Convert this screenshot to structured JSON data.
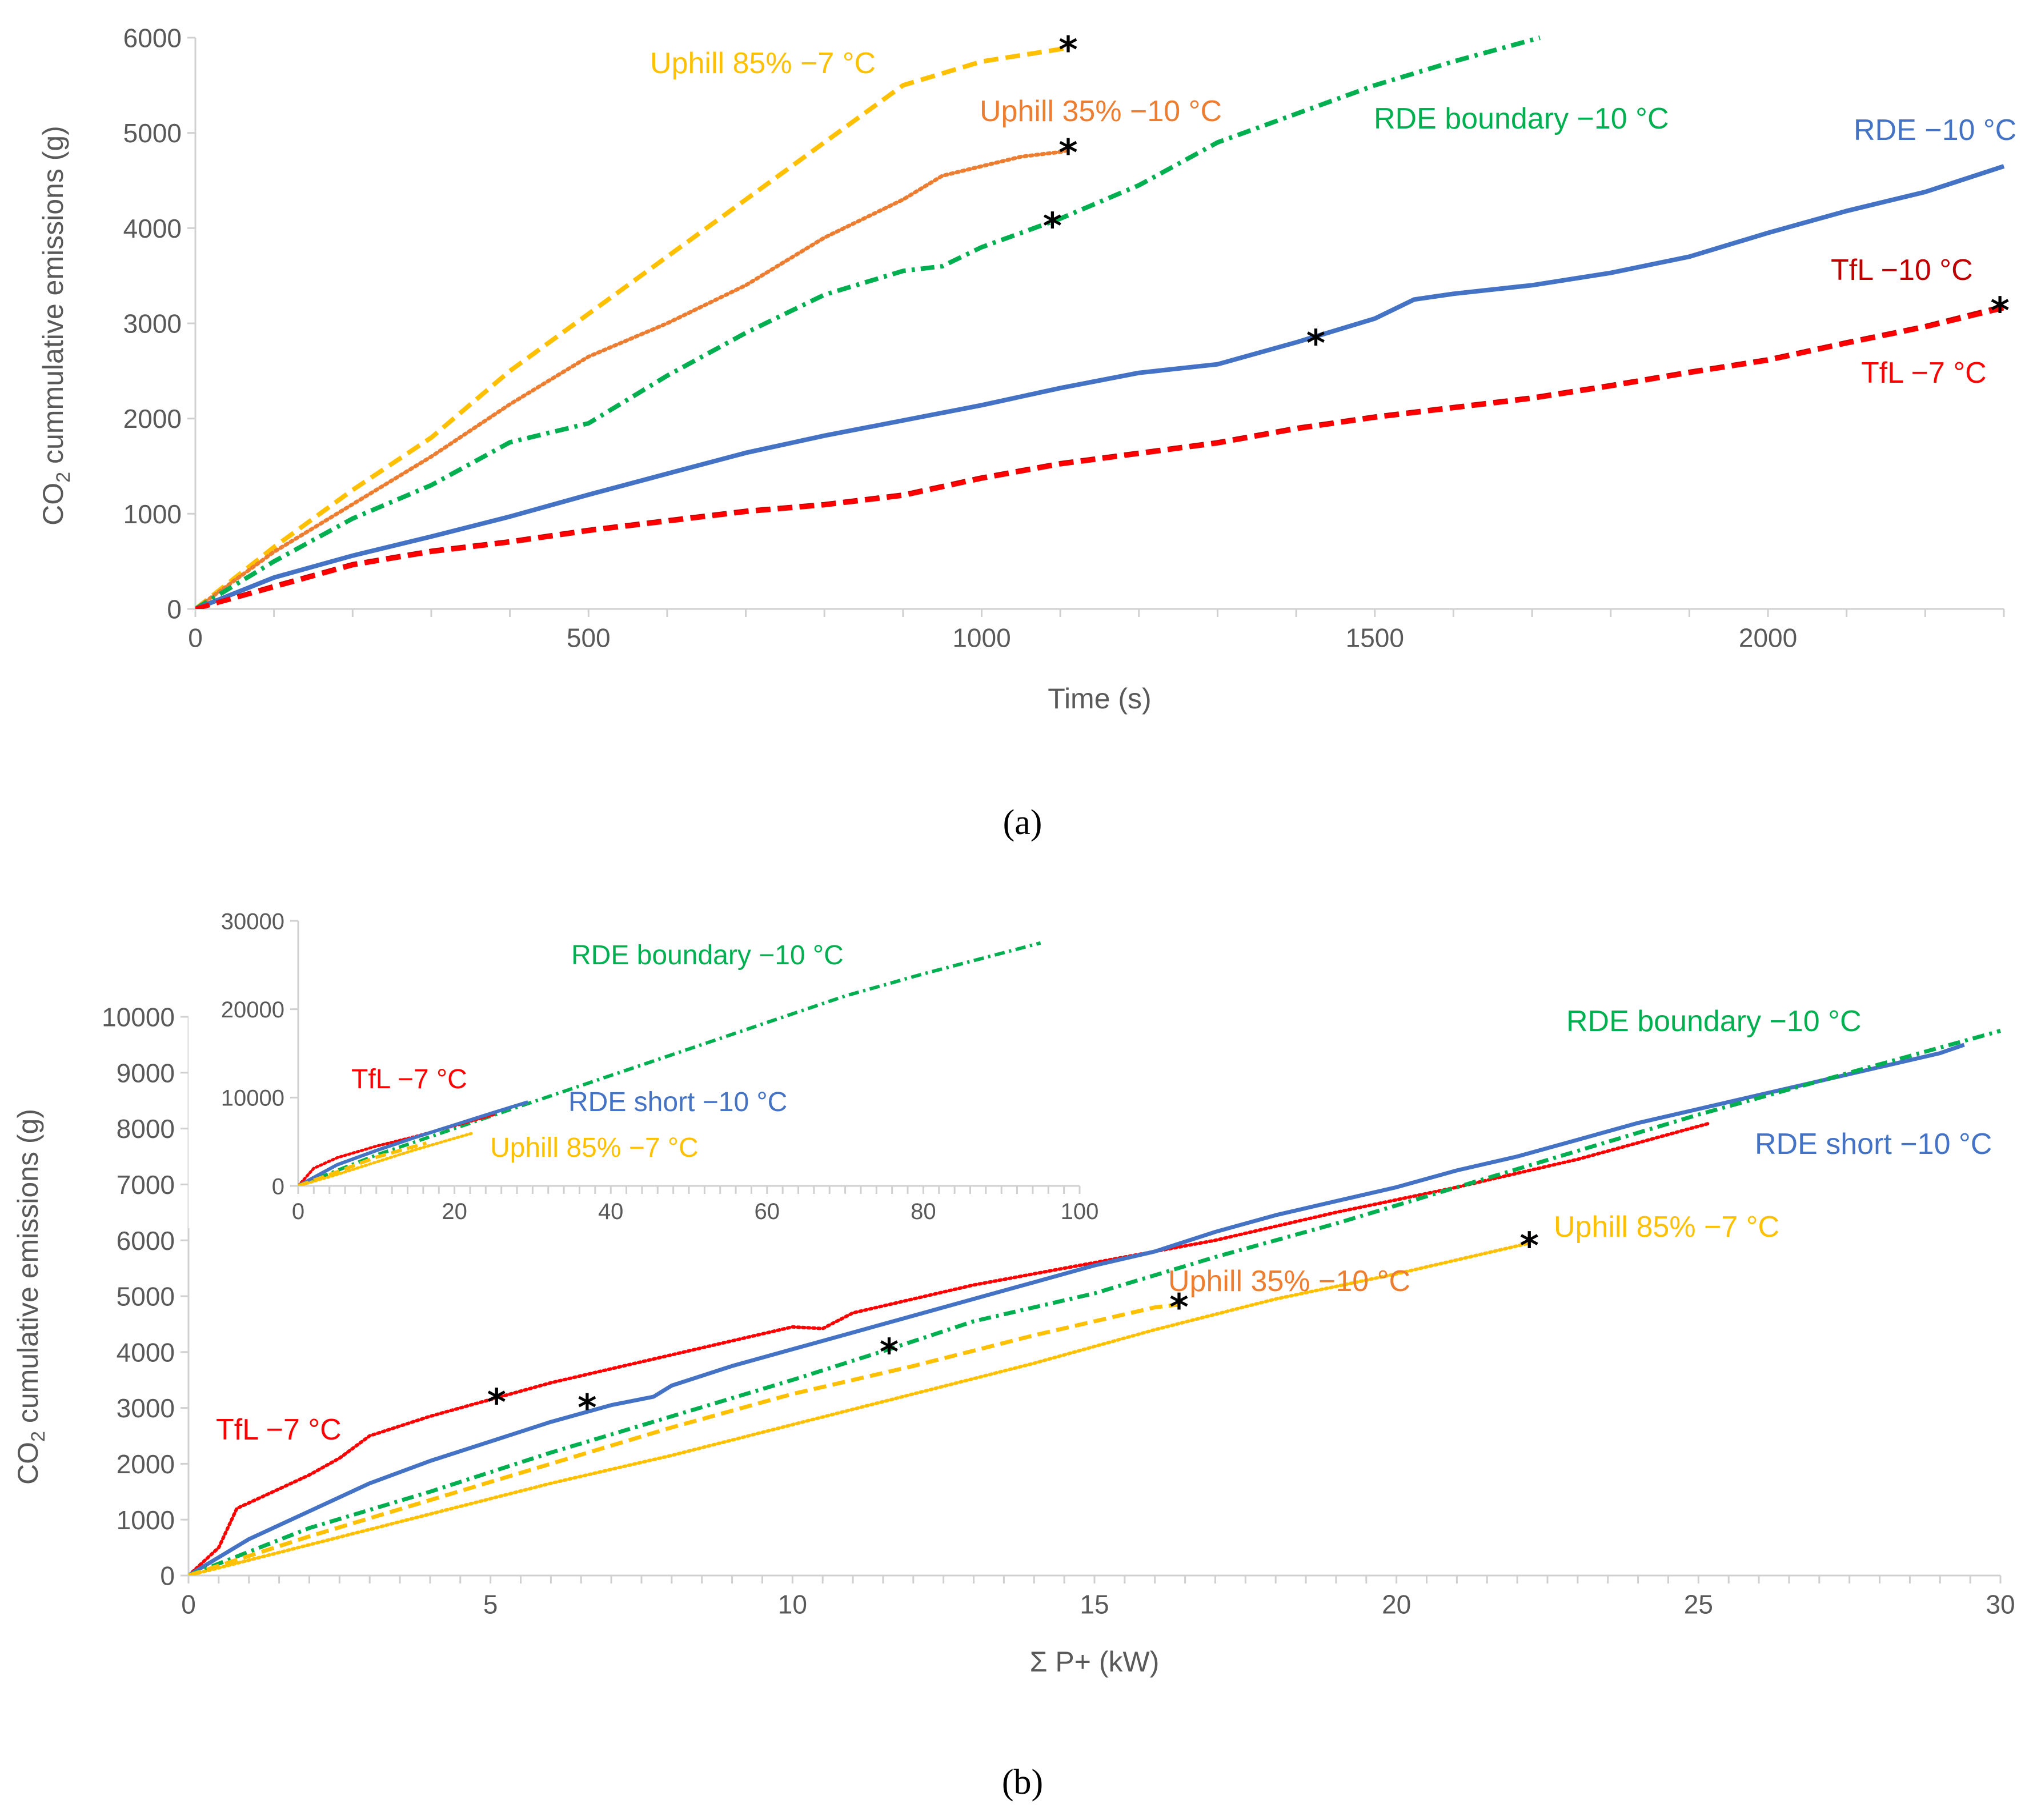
{
  "chart_data": [
    {
      "panel": "(a)",
      "panel_caption": "(a)",
      "type": "line",
      "title": "",
      "xlabel": "Time (s)",
      "ylabel": "CO2 cummulative emissions (g)",
      "ylabel_main": "CO",
      "ylabel_sub": "2",
      "ylabel_rest": " cummulative emissions (g)",
      "xlim": [
        0,
        2300
      ],
      "ylim": [
        0,
        6000
      ],
      "xticks": [
        0,
        500,
        1000,
        1500,
        2000
      ],
      "yticks": [
        0,
        1000,
        2000,
        3000,
        4000,
        5000,
        6000
      ],
      "series": [
        {
          "name": "Uphill 85% −7 °C",
          "color": "#FFC000",
          "style": "dash",
          "x": [
            0,
            100,
            200,
            300,
            400,
            500,
            600,
            700,
            800,
            900,
            1000,
            1100,
            1110
          ],
          "y": [
            0,
            650,
            1250,
            1800,
            2500,
            3100,
            3700,
            4300,
            4900,
            5500,
            5750,
            5880,
            5900
          ],
          "marker_at": [
            1110,
            5900
          ]
        },
        {
          "name": "Uphill 35% −10 °C",
          "color": "#ED7D31",
          "style": "dot",
          "x": [
            0,
            100,
            200,
            300,
            400,
            500,
            600,
            700,
            800,
            900,
            950,
            1000,
            1050,
            1100,
            1110
          ],
          "y": [
            0,
            600,
            1100,
            1600,
            2150,
            2650,
            3000,
            3400,
            3900,
            4300,
            4550,
            4650,
            4750,
            4800,
            4820
          ],
          "marker_at": [
            1110,
            4820
          ]
        },
        {
          "name": "RDE boundary −10 °C",
          "color": "#00B050",
          "style": "dashdot",
          "x": [
            0,
            100,
            200,
            300,
            400,
            500,
            600,
            700,
            800,
            900,
            950,
            1000,
            1100,
            1200,
            1300,
            1400,
            1500,
            1600,
            1710
          ],
          "y": [
            0,
            500,
            950,
            1300,
            1750,
            1950,
            2450,
            2900,
            3300,
            3550,
            3600,
            3800,
            4100,
            4450,
            4900,
            5200,
            5500,
            5750,
            6000
          ],
          "marker_at": [
            1090,
            4050
          ]
        },
        {
          "name": "RDE −10 °C",
          "color": "#4472C4",
          "style": "solid",
          "x": [
            0,
            100,
            200,
            300,
            400,
            500,
            600,
            700,
            800,
            900,
            1000,
            1100,
            1200,
            1300,
            1400,
            1500,
            1550,
            1600,
            1700,
            1800,
            1900,
            2000,
            2100,
            2200,
            2300
          ],
          "y": [
            0,
            330,
            560,
            760,
            970,
            1200,
            1420,
            1640,
            1820,
            1980,
            2140,
            2320,
            2480,
            2570,
            2800,
            3050,
            3250,
            3310,
            3400,
            3530,
            3700,
            3950,
            4180,
            4380,
            4650
          ],
          "marker_at": [
            1425,
            2820
          ]
        },
        {
          "name": "TfL −10 °C",
          "color": "#C00000",
          "style": "dash",
          "x": [
            0,
            100,
            200,
            300,
            400,
            500,
            600,
            700,
            800,
            900,
            1000,
            1100,
            1200,
            1300,
            1400,
            1500,
            1600,
            1700,
            1800,
            1900,
            2000,
            2100,
            2200,
            2300
          ],
          "y": [
            0,
            240,
            470,
            610,
            710,
            830,
            930,
            1030,
            1100,
            1200,
            1380,
            1530,
            1640,
            1750,
            1900,
            2020,
            2120,
            2220,
            2350,
            2490,
            2620,
            2800,
            2970,
            3180
          ],
          "marker_at": [
            2295,
            3160
          ]
        },
        {
          "name": "TfL −7 °C",
          "color": "#FF0000",
          "style": "dash",
          "x": [
            0,
            100,
            200,
            300,
            400,
            500,
            600,
            700,
            800,
            900,
            1000,
            1100,
            1200,
            1300,
            1400,
            1500,
            1600,
            1700,
            1800,
            1900,
            2000,
            2100,
            2200,
            2300
          ],
          "y": [
            0,
            230,
            460,
            600,
            700,
            820,
            920,
            1020,
            1090,
            1190,
            1370,
            1520,
            1630,
            1740,
            1890,
            2010,
            2110,
            2210,
            2340,
            2480,
            2610,
            2790,
            2960,
            3160
          ]
        }
      ],
      "labels": [
        {
          "text": "Uphill 85% −7 °C",
          "color": "#FFC000"
        },
        {
          "text": "Uphill 35% −10 °C",
          "color": "#ED7D31"
        },
        {
          "text": "RDE boundary −10 °C",
          "color": "#00B050"
        },
        {
          "text": "RDE −10 °C",
          "color": "#4472C4"
        },
        {
          "text": "TfL −10 °C",
          "color": "#C00000"
        },
        {
          "text": "TfL −7 °C",
          "color": "#FF0000"
        }
      ],
      "marker_symbol": "*"
    },
    {
      "panel": "(b)",
      "panel_caption": "(b)",
      "type": "line",
      "title": "",
      "xlabel": "Σ P+ (kW)",
      "ylabel": "CO2 cumulative emissions (g)",
      "ylabel_main": "CO",
      "ylabel_sub": "2",
      "ylabel_rest": " cumulative emissions (g)",
      "xlim": [
        0,
        30
      ],
      "ylim": [
        0,
        10000
      ],
      "xticks": [
        0,
        5,
        10,
        15,
        20,
        25,
        30
      ],
      "yticks": [
        0,
        1000,
        2000,
        3000,
        4000,
        5000,
        6000,
        7000,
        8000,
        9000,
        10000
      ],
      "series": [
        {
          "name": "TfL −7 °C",
          "color": "#FF0000",
          "style": "dot",
          "x": [
            0,
            0.5,
            0.8,
            1.2,
            2,
            2.5,
            3,
            4,
            5,
            6,
            7,
            8,
            9,
            10,
            10.5,
            11,
            12,
            13,
            15,
            17,
            19,
            21,
            23,
            25.2
          ],
          "y": [
            0,
            500,
            1200,
            1400,
            1800,
            2100,
            2500,
            2850,
            3150,
            3450,
            3700,
            3950,
            4200,
            4450,
            4420,
            4700,
            4950,
            5200,
            5600,
            6000,
            6500,
            6950,
            7450,
            8100
          ],
          "marker_at": [
            5.1,
            3150
          ]
        },
        {
          "name": "RDE short −10 °C",
          "color": "#4472C4",
          "style": "solid",
          "x": [
            0,
            1,
            2,
            3,
            4,
            5,
            6,
            7,
            7.7,
            8,
            9,
            10,
            11,
            12,
            13,
            14,
            15,
            16,
            17,
            18,
            19,
            20,
            21,
            22,
            23,
            24,
            25,
            26,
            27,
            28,
            29,
            29.4
          ],
          "y": [
            0,
            650,
            1150,
            1650,
            2050,
            2400,
            2750,
            3050,
            3200,
            3400,
            3750,
            4050,
            4350,
            4650,
            4950,
            5250,
            5550,
            5800,
            6150,
            6450,
            6700,
            6950,
            7250,
            7500,
            7800,
            8100,
            8350,
            8600,
            8850,
            9100,
            9350,
            9500
          ],
          "marker_at": [
            6.6,
            3050
          ]
        },
        {
          "name": "RDE boundary −10 °C",
          "color": "#00B050",
          "style": "dashdot",
          "x": [
            0,
            2,
            4,
            6,
            8,
            10,
            11.6,
            13,
            15,
            17,
            19,
            21,
            23,
            25,
            27,
            29,
            30
          ],
          "y": [
            0,
            850,
            1500,
            2200,
            2850,
            3500,
            4050,
            4550,
            5050,
            5700,
            6300,
            6950,
            7600,
            8250,
            8850,
            9450,
            9750
          ],
          "marker_at": [
            11.6,
            4050
          ]
        },
        {
          "name": "Uphill 35% −10 °C",
          "color": "#FFC000",
          "style": "dash",
          "x": [
            0,
            2,
            4,
            6,
            8,
            10,
            12,
            14,
            16,
            16.4
          ],
          "y": [
            0,
            700,
            1350,
            2000,
            2650,
            3250,
            3750,
            4300,
            4800,
            4850
          ],
          "marker_at": [
            16.4,
            4850
          ]
        },
        {
          "name": "Uphill 85% −7 °C",
          "color": "#FFC000",
          "style": "dot",
          "x": [
            0,
            2,
            4,
            6,
            8,
            10,
            12,
            14,
            16,
            18,
            20,
            22.2
          ],
          "y": [
            0,
            550,
            1100,
            1650,
            2150,
            2700,
            3250,
            3800,
            4400,
            4950,
            5400,
            5950
          ],
          "marker_at": [
            22.2,
            5950
          ]
        }
      ],
      "labels": [
        {
          "text": "RDE boundary −10 °C",
          "color": "#00B050"
        },
        {
          "text": "RDE short −10 °C",
          "color": "#4472C4"
        },
        {
          "text": "Uphill 85% −7 °C",
          "color": "#FFC000"
        },
        {
          "text": "Uphill 35% −10 °C",
          "color": "#ED7D31"
        },
        {
          "text": "TfL −7 °C",
          "color": "#FF0000"
        }
      ],
      "marker_symbol": "*",
      "inset": {
        "type": "line",
        "xlim": [
          0,
          100
        ],
        "ylim": [
          0,
          30000
        ],
        "xticks": [
          0,
          20,
          40,
          60,
          80,
          100
        ],
        "yticks": [
          0,
          10000,
          20000,
          30000
        ],
        "series": [
          {
            "name": "RDE boundary −10 °C",
            "color": "#00B050",
            "style": "dashdot",
            "x": [
              0,
              10,
              20,
              30,
              40,
              50,
              60,
              70,
              80,
              95
            ],
            "y": [
              0,
              3500,
              6500,
              9500,
              12500,
              15500,
              18500,
              21500,
              24000,
              27500
            ]
          },
          {
            "name": "TfL −7 °C",
            "color": "#FF0000",
            "style": "dot",
            "x": [
              0,
              2,
              5,
              10,
              15,
              20,
              25.2
            ],
            "y": [
              0,
              2000,
              3200,
              4500,
              5600,
              6800,
              8100
            ]
          },
          {
            "name": "RDE short −10 °C",
            "color": "#4472C4",
            "style": "solid",
            "x": [
              0,
              5,
              10,
              15,
              20,
              25,
              29.4
            ],
            "y": [
              0,
              2400,
              4000,
              5500,
              6900,
              8300,
              9500
            ]
          },
          {
            "name": "Uphill 85% −7 °C",
            "color": "#FFC000",
            "style": "dot",
            "x": [
              0,
              5,
              10,
              15,
              22.2
            ],
            "y": [
              0,
              1300,
              2700,
              4100,
              5950
            ]
          },
          {
            "name": "Uphill 35% −10 °C",
            "color": "#FFC000",
            "style": "dash",
            "x": [
              0,
              5,
              10,
              16.4
            ],
            "y": [
              0,
              1600,
              3250,
              4850
            ]
          }
        ],
        "labels": [
          {
            "text": "RDE boundary −10 °C",
            "color": "#00B050"
          },
          {
            "text": "TfL −7 °C",
            "color": "#FF0000"
          },
          {
            "text": "RDE short  −10 °C",
            "color": "#4472C4"
          },
          {
            "text": "Uphill 85% −7 °C",
            "color": "#FFC000"
          }
        ]
      }
    }
  ]
}
